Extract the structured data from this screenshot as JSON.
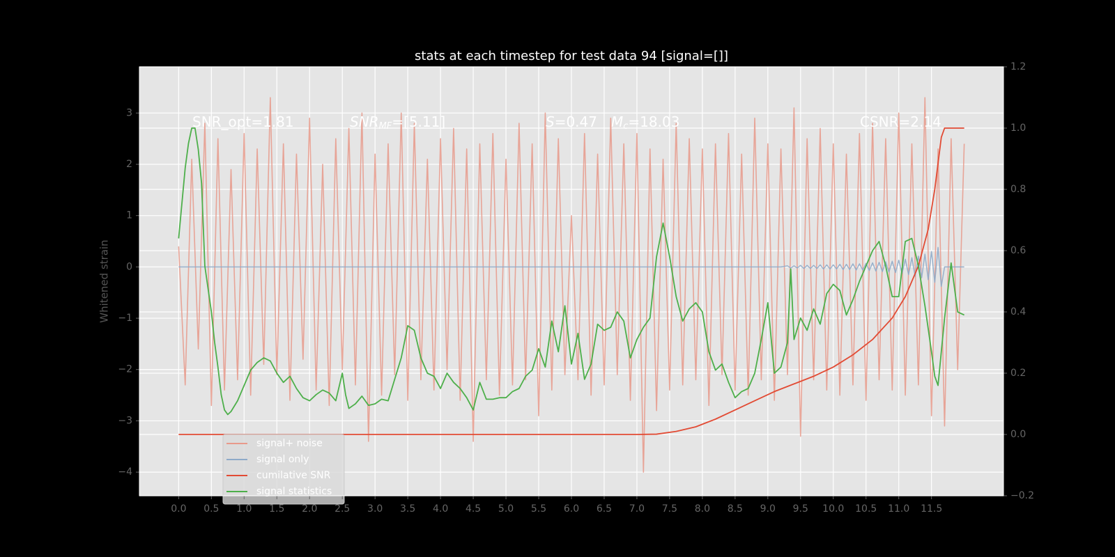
{
  "chart_data": {
    "type": "line",
    "title": "stats at each timestep for test data 94 [signal=[]]",
    "y_label": "Whitened strain",
    "annotations": [
      [
        "SNR_opt=1.81"
      ],
      [
        "SNR",
        "MF",
        "=[5.11]"
      ],
      [
        "S",
        "=0.47"
      ],
      [
        "M",
        "c",
        "=18.03"
      ],
      [
        "CSNR=2.14"
      ]
    ],
    "xlim": [
      -0.6,
      12.6
    ],
    "xticks": [
      {
        "value": 0,
        "label": "0.0"
      },
      0.5,
      {
        "value": 1,
        "label": "1.0"
      },
      1.5,
      {
        "value": 2,
        "label": "2.0"
      },
      2.5,
      {
        "value": 3,
        "label": "3.0"
      },
      3.5,
      {
        "value": 4,
        "label": "4.0"
      },
      4.5,
      {
        "value": 5,
        "label": "5.0"
      },
      5.5,
      {
        "value": 6,
        "label": "6.0"
      },
      6.5,
      {
        "value": 7,
        "label": "7.0"
      },
      7.5,
      {
        "value": 8,
        "label": "8.0"
      },
      8.5,
      {
        "value": 9,
        "label": "9.0"
      },
      9.5,
      {
        "value": 10,
        "label": "10.0"
      },
      10.5,
      {
        "value": 11,
        "label": "11.0"
      },
      11.5
    ],
    "ylim": [
      -4.46,
      3.9
    ],
    "yticks": [
      {
        "value": -4,
        "label": "−4"
      },
      {
        "value": -3,
        "label": "−3"
      },
      {
        "value": -2,
        "label": "−2"
      },
      {
        "value": -1,
        "label": "−1"
      },
      0,
      1,
      2,
      3
    ],
    "y2lim": [
      -0.2,
      1.2
    ],
    "y2ticks": [
      {
        "value": -0.2,
        "label": "−0.2"
      },
      {
        "value": 0,
        "label": "0.0"
      },
      0.2,
      0.4,
      0.6,
      0.8,
      {
        "value": 1,
        "label": "1.0"
      },
      1.2
    ],
    "grid": true,
    "legend": "lower left",
    "series": [
      {
        "name": "signal+ noise",
        "color": "#e8998a",
        "x": [
          0,
          0.1,
          0.2,
          0.3,
          0.4,
          0.5,
          0.6,
          0.7,
          0.8,
          0.9,
          1.0,
          1.1,
          1.2,
          1.3,
          1.4,
          1.5,
          1.6,
          1.7,
          1.8,
          1.9,
          2.0,
          2.1,
          2.2,
          2.3,
          2.4,
          2.5,
          2.6,
          2.7,
          2.8,
          2.9,
          3.0,
          3.1,
          3.2,
          3.3,
          3.4,
          3.5,
          3.6,
          3.7,
          3.8,
          3.9,
          4.0,
          4.1,
          4.2,
          4.3,
          4.4,
          4.5,
          4.6,
          4.7,
          4.8,
          4.9,
          5.0,
          5.1,
          5.2,
          5.3,
          5.4,
          5.5,
          5.6,
          5.7,
          5.8,
          5.9,
          6.0,
          6.1,
          6.2,
          6.3,
          6.4,
          6.5,
          6.6,
          6.7,
          6.8,
          6.9,
          7.0,
          7.1,
          7.2,
          7.3,
          7.4,
          7.5,
          7.6,
          7.7,
          7.8,
          7.9,
          8.0,
          8.1,
          8.2,
          8.3,
          8.4,
          8.5,
          8.6,
          8.7,
          8.8,
          8.9,
          9.0,
          9.1,
          9.2,
          9.3,
          9.4,
          9.5,
          9.6,
          9.7,
          9.8,
          9.9,
          10.0,
          10.1,
          10.2,
          10.3,
          10.4,
          10.5,
          10.6,
          10.7,
          10.8,
          10.9,
          11.0,
          11.1,
          11.2,
          11.3,
          11.4,
          11.5,
          11.6,
          11.7,
          11.8,
          11.9,
          12.0
        ],
        "values": [
          0.4,
          -2.3,
          2.1,
          -1.6,
          2.8,
          -2.7,
          2.5,
          -2.4,
          1.9,
          -2.2,
          2.6,
          -2.5,
          2.3,
          -1.9,
          3.3,
          -2.1,
          2.4,
          -2.6,
          2.2,
          -1.8,
          2.9,
          -2.4,
          2.0,
          -2.7,
          2.5,
          -2.0,
          2.7,
          -2.3,
          3.0,
          -3.4,
          2.2,
          -2.5,
          2.4,
          -2.1,
          3.0,
          -2.6,
          2.8,
          -2.2,
          2.1,
          -2.4,
          2.5,
          -2.0,
          2.7,
          -2.6,
          2.3,
          -3.4,
          2.4,
          -2.2,
          2.6,
          -2.5,
          2.1,
          -2.3,
          2.8,
          -2.2,
          2.4,
          -2.9,
          3.0,
          -2.4,
          2.5,
          -2.1,
          1.0,
          -2.2,
          2.6,
          -2.5,
          2.2,
          -2.3,
          2.9,
          -2.1,
          2.4,
          -2.6,
          2.6,
          -4.0,
          2.3,
          -2.8,
          2.1,
          -2.4,
          2.8,
          -2.3,
          2.5,
          -2.2,
          2.3,
          -2.7,
          2.4,
          -2.1,
          2.6,
          -2.4,
          2.2,
          -2.5,
          2.9,
          -2.2,
          2.4,
          -2.6,
          2.3,
          -2.1,
          3.1,
          -3.3,
          2.5,
          -2.2,
          2.7,
          -2.4,
          2.4,
          -2.5,
          2.2,
          -2.3,
          2.6,
          -2.6,
          2.8,
          -2.2,
          2.5,
          -2.4,
          3.0,
          -2.5,
          2.4,
          -2.3,
          3.3,
          -2.9,
          2.3,
          -3.1,
          2.5,
          -2.0,
          2.4
        ]
      },
      {
        "name": "signal only",
        "color": "#8eaac8",
        "x": [
          0,
          9.2,
          9.3,
          9.35,
          9.4,
          9.45,
          9.5,
          9.55,
          9.6,
          9.65,
          9.7,
          9.75,
          9.8,
          9.85,
          9.9,
          9.95,
          10.0,
          10.05,
          10.1,
          10.15,
          10.2,
          10.25,
          10.3,
          10.35,
          10.4,
          10.45,
          10.5,
          10.55,
          10.6,
          10.65,
          10.7,
          10.75,
          10.8,
          10.85,
          10.9,
          10.95,
          11.0,
          11.05,
          11.1,
          11.15,
          11.2,
          11.25,
          11.3,
          11.35,
          11.4,
          11.45,
          11.5,
          11.55,
          11.6,
          11.65,
          11.7,
          12.0
        ],
        "values": [
          0,
          0,
          0.02,
          -0.02,
          0.02,
          -0.02,
          0.03,
          -0.03,
          0.03,
          -0.03,
          0.03,
          -0.03,
          0.04,
          -0.04,
          0.04,
          -0.04,
          0.04,
          -0.04,
          0.05,
          -0.05,
          0.05,
          -0.05,
          0.06,
          -0.06,
          0.06,
          -0.06,
          0.07,
          -0.07,
          0.08,
          -0.08,
          0.09,
          -0.09,
          0.1,
          -0.1,
          0.11,
          -0.11,
          0.13,
          -0.13,
          0.15,
          -0.15,
          0.18,
          -0.18,
          0.21,
          -0.21,
          0.25,
          -0.25,
          0.3,
          -0.3,
          0.38,
          -0.38,
          0,
          0
        ]
      },
      {
        "name": "cumilative SNR",
        "color": "#e24a33",
        "axis": "y2",
        "x": [
          0,
          7.0,
          7.3,
          7.6,
          7.9,
          8.2,
          8.5,
          8.8,
          9.1,
          9.4,
          9.7,
          10.0,
          10.3,
          10.6,
          10.9,
          11.1,
          11.3,
          11.45,
          11.55,
          11.65,
          11.7,
          12.0
        ],
        "values": [
          0,
          0,
          0.001,
          0.01,
          0.025,
          0.05,
          0.08,
          0.11,
          0.14,
          0.165,
          0.19,
          0.22,
          0.26,
          0.31,
          0.38,
          0.45,
          0.55,
          0.67,
          0.8,
          0.97,
          1.0,
          1.0
        ]
      },
      {
        "name": "signal statistics",
        "color": "#4daf4a",
        "axis": "y2",
        "x": [
          0,
          0.1,
          0.15,
          0.2,
          0.25,
          0.3,
          0.35,
          0.4,
          0.5,
          0.55,
          0.6,
          0.65,
          0.7,
          0.75,
          0.8,
          0.9,
          1.0,
          1.1,
          1.2,
          1.3,
          1.4,
          1.5,
          1.6,
          1.7,
          1.8,
          1.9,
          2.0,
          2.1,
          2.2,
          2.3,
          2.4,
          2.5,
          2.55,
          2.6,
          2.7,
          2.8,
          2.9,
          3.0,
          3.1,
          3.2,
          3.3,
          3.4,
          3.5,
          3.6,
          3.7,
          3.8,
          3.9,
          4.0,
          4.1,
          4.2,
          4.3,
          4.4,
          4.5,
          4.6,
          4.7,
          4.8,
          4.9,
          5.0,
          5.1,
          5.2,
          5.3,
          5.4,
          5.5,
          5.6,
          5.7,
          5.8,
          5.9,
          6.0,
          6.1,
          6.2,
          6.3,
          6.4,
          6.5,
          6.6,
          6.7,
          6.8,
          6.9,
          7.0,
          7.1,
          7.2,
          7.3,
          7.4,
          7.5,
          7.6,
          7.7,
          7.8,
          7.9,
          8.0,
          8.1,
          8.2,
          8.3,
          8.4,
          8.5,
          8.6,
          8.7,
          8.8,
          8.9,
          9.0,
          9.1,
          9.2,
          9.3,
          9.35,
          9.4,
          9.5,
          9.6,
          9.7,
          9.8,
          9.9,
          10.0,
          10.1,
          10.2,
          10.3,
          10.4,
          10.5,
          10.6,
          10.7,
          10.8,
          10.9,
          11.0,
          11.1,
          11.2,
          11.3,
          11.4,
          11.5,
          11.55,
          11.6,
          11.7,
          11.8,
          11.9,
          12.0
        ],
        "values": [
          0.64,
          0.87,
          0.95,
          1.0,
          1.0,
          0.93,
          0.82,
          0.55,
          0.4,
          0.3,
          0.22,
          0.13,
          0.08,
          0.065,
          0.075,
          0.11,
          0.16,
          0.21,
          0.235,
          0.25,
          0.24,
          0.2,
          0.17,
          0.19,
          0.15,
          0.12,
          0.11,
          0.13,
          0.145,
          0.135,
          0.11,
          0.2,
          0.13,
          0.085,
          0.1,
          0.125,
          0.095,
          0.1,
          0.115,
          0.11,
          0.18,
          0.25,
          0.355,
          0.34,
          0.25,
          0.2,
          0.19,
          0.15,
          0.2,
          0.17,
          0.15,
          0.12,
          0.08,
          0.17,
          0.115,
          0.115,
          0.12,
          0.12,
          0.14,
          0.15,
          0.19,
          0.21,
          0.28,
          0.22,
          0.37,
          0.27,
          0.42,
          0.23,
          0.33,
          0.18,
          0.23,
          0.36,
          0.34,
          0.35,
          0.4,
          0.37,
          0.25,
          0.31,
          0.35,
          0.38,
          0.58,
          0.69,
          0.58,
          0.45,
          0.37,
          0.41,
          0.43,
          0.4,
          0.27,
          0.21,
          0.23,
          0.17,
          0.12,
          0.14,
          0.15,
          0.2,
          0.31,
          0.43,
          0.2,
          0.22,
          0.3,
          0.54,
          0.31,
          0.38,
          0.34,
          0.41,
          0.36,
          0.46,
          0.49,
          0.47,
          0.39,
          0.44,
          0.5,
          0.55,
          0.6,
          0.63,
          0.55,
          0.45,
          0.45,
          0.63,
          0.64,
          0.55,
          0.42,
          0.27,
          0.19,
          0.16,
          0.38,
          0.56,
          0.4,
          0.39
        ]
      }
    ]
  }
}
